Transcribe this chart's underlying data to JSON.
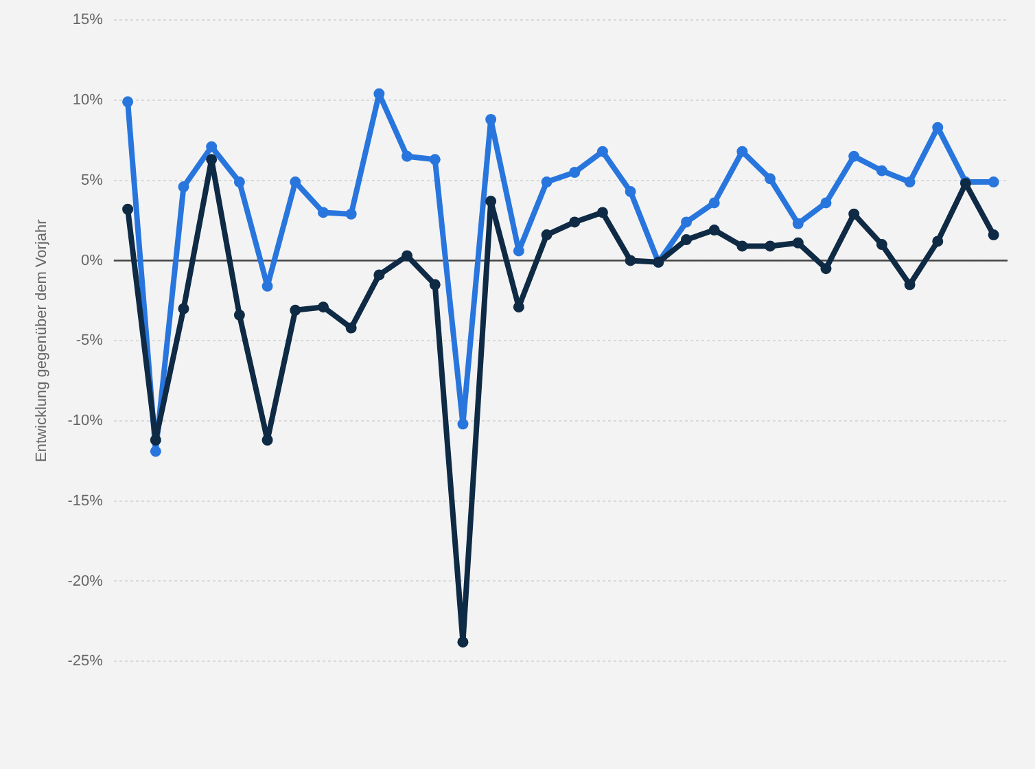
{
  "chart_data": {
    "type": "line",
    "ylabel": "Entwicklung gegenüber dem Vorjahr",
    "categories": [
      null,
      null,
      null,
      null,
      null,
      null,
      null,
      null,
      null,
      null,
      null,
      null,
      null,
      null,
      null,
      null,
      null,
      null,
      null,
      null,
      null,
      null,
      null,
      null,
      null,
      null,
      null,
      null,
      null,
      null,
      null,
      null
    ],
    "series": [
      {
        "color": "#2876dd",
        "values": [
          9.9,
          -11.9,
          4.6,
          7.1,
          4.9,
          -1.6,
          4.9,
          3.0,
          2.9,
          10.4,
          6.5,
          6.3,
          -10.2,
          8.8,
          0.6,
          4.9,
          5.5,
          6.8,
          4.3,
          -0.1,
          2.4,
          3.6,
          6.8,
          5.1,
          2.3,
          3.6,
          6.5,
          5.6,
          4.9,
          8.3,
          4.9,
          4.9
        ]
      },
      {
        "color": "#0f2a44",
        "values": [
          3.2,
          -11.2,
          -3.0,
          6.3,
          -3.4,
          -11.2,
          -3.1,
          -2.9,
          -4.2,
          -0.9,
          0.3,
          -1.5,
          -23.8,
          3.7,
          -2.9,
          1.6,
          2.4,
          3.0,
          0.0,
          -0.1,
          1.3,
          1.9,
          0.9,
          0.9,
          1.1,
          -0.5,
          2.9,
          1.0,
          -1.5,
          1.2,
          4.8,
          1.6
        ]
      }
    ],
    "ylim": [
      -25,
      15
    ],
    "yticks": [
      {
        "value": -25,
        "label": "-25%"
      },
      {
        "value": -20,
        "label": "-20%"
      },
      {
        "value": -15,
        "label": "-15%"
      },
      {
        "value": -10,
        "label": "-10%"
      },
      {
        "value": -5,
        "label": "-5%"
      },
      {
        "value": 0,
        "label": "0%"
      },
      {
        "value": 5,
        "label": "5%"
      },
      {
        "value": 10,
        "label": "10%"
      },
      {
        "value": 15,
        "label": "15%"
      }
    ],
    "ref_lines": [
      {
        "axis": "y",
        "value": 0,
        "color": "#444444"
      }
    ],
    "grid": "y",
    "legend": false,
    "marker": "circle",
    "line_style": "solid"
  }
}
